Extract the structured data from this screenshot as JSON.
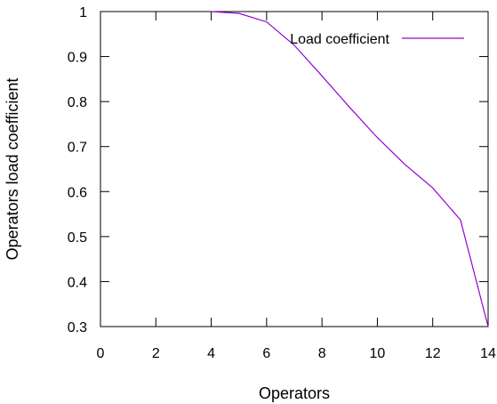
{
  "chart_data": {
    "type": "line",
    "title": "",
    "xlabel": "Operators",
    "ylabel": "Operators load coefficient",
    "xlim": [
      0,
      14
    ],
    "ylim": [
      0.3,
      1
    ],
    "xticks": [
      0,
      2,
      4,
      6,
      8,
      10,
      12,
      14
    ],
    "yticks": [
      0.3,
      0.4,
      0.5,
      0.6,
      0.7,
      0.8,
      0.9,
      1
    ],
    "xtick_labels": [
      "0",
      "2",
      "4",
      "6",
      "8",
      "10",
      "12",
      "14"
    ],
    "ytick_labels": [
      "0.3",
      "0.4",
      "0.5",
      "0.6",
      "0.7",
      "0.8",
      "0.9",
      "1"
    ],
    "grid": false,
    "legend_position": "top-right",
    "series": [
      {
        "name": "Load coefficient",
        "color": "#9400d3",
        "x": [
          4,
          5,
          6,
          7,
          8,
          9,
          10,
          11,
          12,
          13,
          14
        ],
        "y": [
          1.0,
          0.996,
          0.977,
          0.925,
          0.857,
          0.787,
          0.72,
          0.66,
          0.608,
          0.537,
          0.3
        ]
      }
    ]
  }
}
